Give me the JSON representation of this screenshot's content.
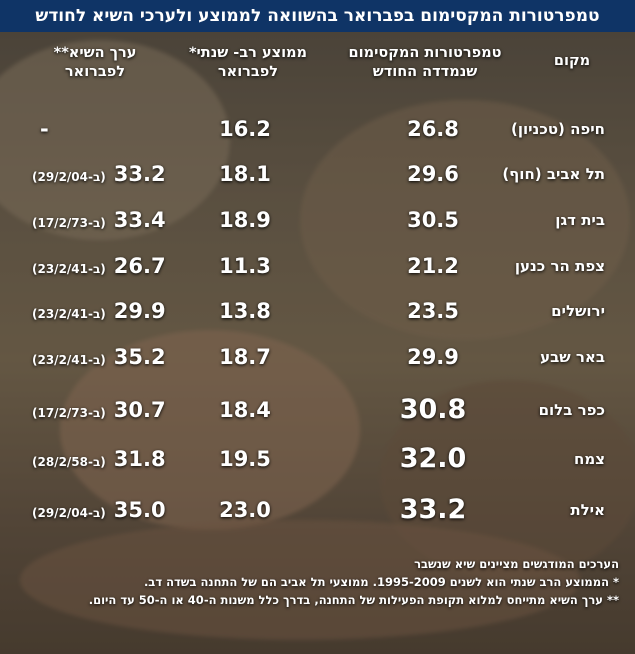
{
  "title": "טמפרטורות המקסימום בפברואר בהשוואה לממוצע ולערכי השיא לחודש",
  "headers": {
    "place": "מקום",
    "max": "טמפרטורות המקסימום שנמדדה החודש",
    "avg": "ממוצע רב- שנתי* לפברואר",
    "record": "ערך השיא** לפברואר"
  },
  "rows": [
    {
      "place": "חיפה (טכניון)",
      "max": "26.8",
      "avg": "16.2",
      "record": "-",
      "record_date": ""
    },
    {
      "place": "תל אביב (חוף)",
      "max": "29.6",
      "avg": "18.1",
      "record": "33.2",
      "record_date": "(ב-29/2/04)"
    },
    {
      "place": "בית דגן",
      "max": "30.5",
      "avg": "18.9",
      "record": "33.4",
      "record_date": "(ב-17/2/73)"
    },
    {
      "place": "צפת הר כנען",
      "max": "21.2",
      "avg": "11.3",
      "record": "26.7",
      "record_date": "(ב-23/2/41)"
    },
    {
      "place": "ירושלים",
      "max": "23.5",
      "avg": "13.8",
      "record": "29.9",
      "record_date": "(ב-23/2/41)"
    },
    {
      "place": "באר שבע",
      "max": "29.9",
      "avg": "18.7",
      "record": "35.2",
      "record_date": "(ב-23/2/41)"
    },
    {
      "place": "כפר בלום",
      "max": "30.8",
      "avg": "18.4",
      "record": "30.7",
      "record_date": "(ב-17/2/73)"
    },
    {
      "place": "צמח",
      "max": "32.0",
      "avg": "19.5",
      "record": "31.8",
      "record_date": "(ב-28/2/58)"
    },
    {
      "place": "אילת",
      "max": "33.2",
      "avg": "23.0",
      "record": "35.0",
      "record_date": "(ב-29/2/04)"
    }
  ],
  "notes": [
    "הערכים המודגשים מציינים שיא שנשבר",
    "* הממוצע הרב שנתי הוא לשנים 1995-2009. ממוצעי תל אביב הם של התחנה בשדה דב.",
    "** ערך השיא מתייחס למלוא תקופת הפעילות של התחנה, בדרך כלל משנות ה-40 או ה-50 עד היום."
  ]
}
